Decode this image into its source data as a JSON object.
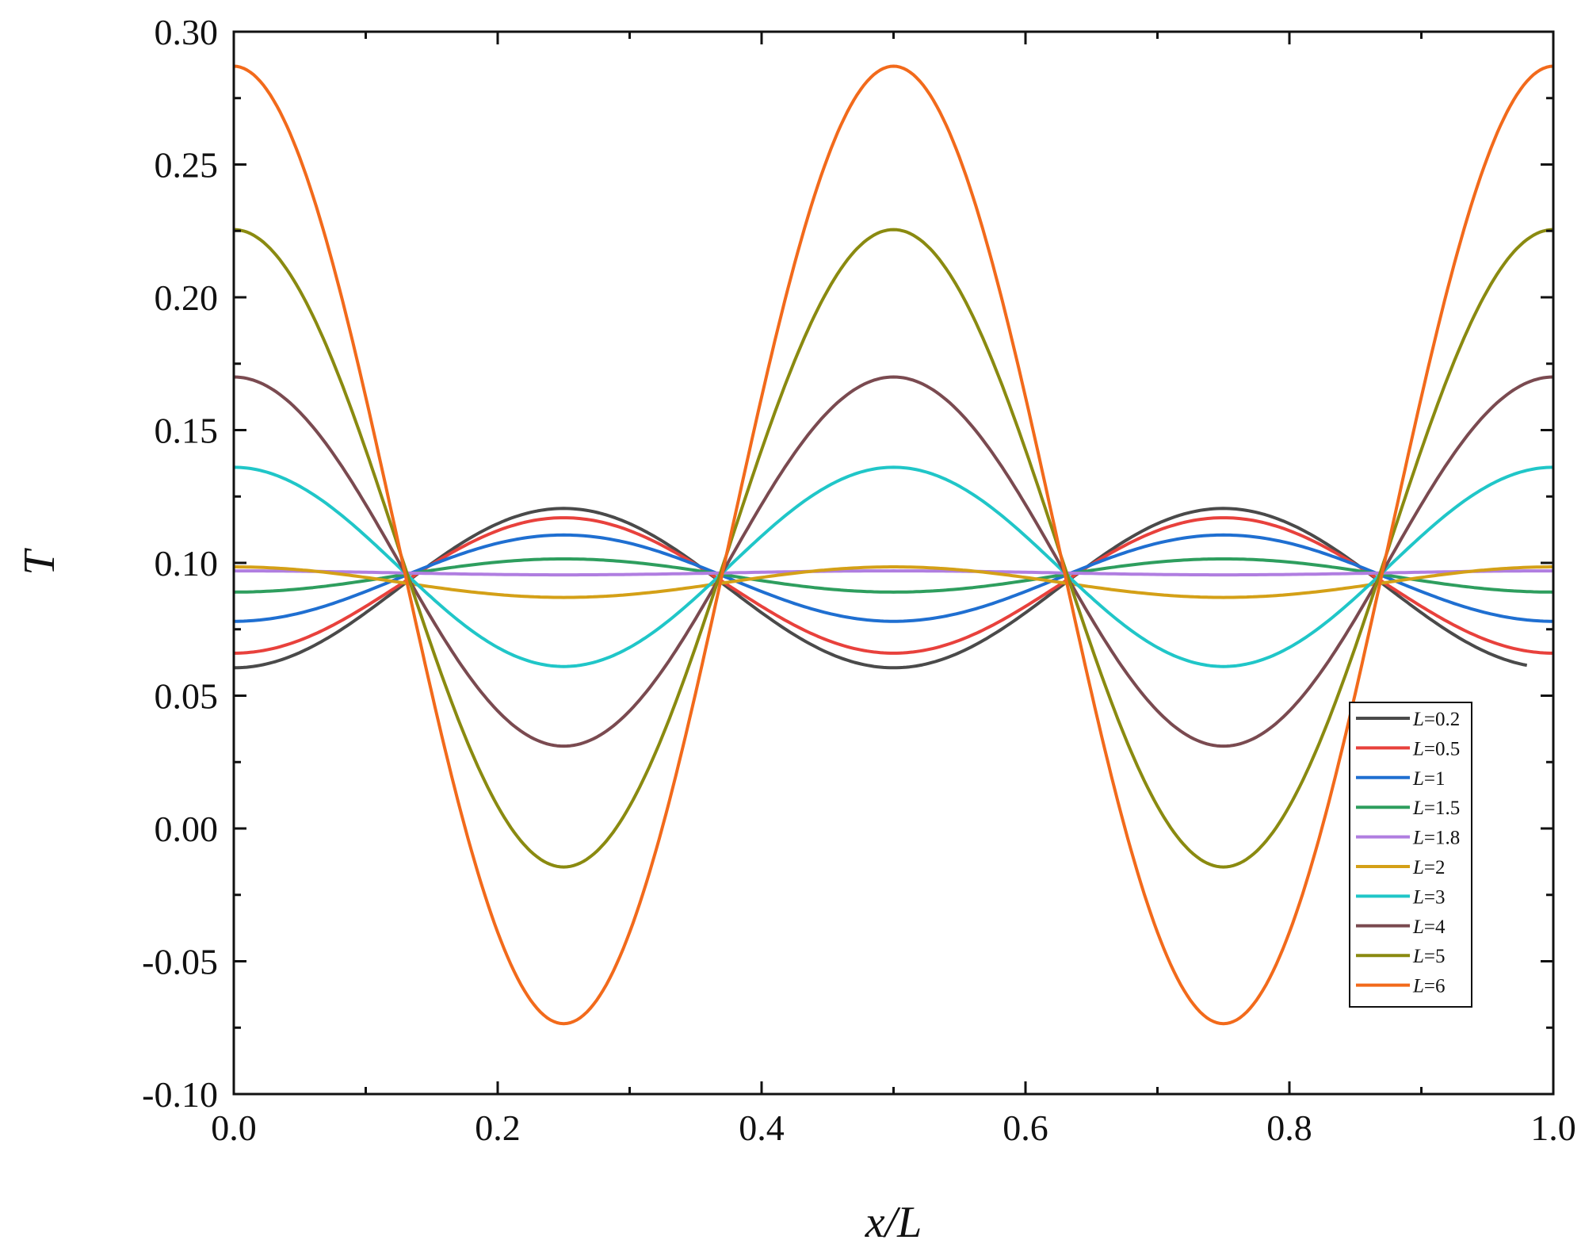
{
  "chart_data": {
    "type": "line",
    "xlabel": "x/L",
    "ylabel": "T",
    "xlim": [
      0.0,
      1.0
    ],
    "ylim": [
      -0.1,
      0.3
    ],
    "xticks": [
      "0.0",
      "0.2",
      "0.4",
      "0.6",
      "0.8",
      "1.0"
    ],
    "yticks": [
      "-0.10",
      "-0.05",
      "0.00",
      "0.05",
      "0.10",
      "0.15",
      "0.20",
      "0.25",
      "0.30"
    ],
    "grid": false,
    "legend_position": "lower-right",
    "series": [
      {
        "name": "L=0.2",
        "label_var": "L",
        "label_val": "=0.2",
        "color": "#4a4a4a",
        "edge": 0.0605,
        "center": 0.1205,
        "x_end": 0.98
      },
      {
        "name": "L=0.5",
        "label_var": "L",
        "label_val": "=0.5",
        "color": "#e8413c",
        "edge": 0.066,
        "center": 0.117,
        "x_end": 1.0
      },
      {
        "name": "L=1",
        "label_var": "L",
        "label_val": "=1",
        "color": "#1f6fd1",
        "edge": 0.078,
        "center": 0.1105,
        "x_end": 1.0
      },
      {
        "name": "L=1.5",
        "label_var": "L",
        "label_val": "=1.5",
        "color": "#2e9e5e",
        "edge": 0.089,
        "center": 0.1015,
        "x_end": 1.0
      },
      {
        "name": "L=1.8",
        "label_var": "L",
        "label_val": "=1.8",
        "color": "#b07ee0",
        "edge": 0.097,
        "center": 0.0955,
        "x_end": 1.0
      },
      {
        "name": "L=2",
        "label_var": "L",
        "label_val": "=2",
        "color": "#d4a017",
        "edge": 0.0985,
        "center": 0.087,
        "x_end": 1.0
      },
      {
        "name": "L=3",
        "label_var": "L",
        "label_val": "=3",
        "color": "#20c6c8",
        "edge": 0.136,
        "center": 0.061,
        "x_end": 1.0
      },
      {
        "name": "L=4",
        "label_var": "L",
        "label_val": "=4",
        "color": "#7a4a50",
        "edge": 0.17,
        "center": 0.031,
        "x_end": 1.0
      },
      {
        "name": "L=5",
        "label_var": "L",
        "label_val": "=5",
        "color": "#8a8a10",
        "edge": 0.2255,
        "center": -0.0145,
        "x_end": 1.0
      },
      {
        "name": "L=6",
        "label_var": "L",
        "label_val": "=6",
        "color": "#f26a1b",
        "edge": 0.287,
        "center": -0.0735,
        "x_end": 1.0
      }
    ]
  }
}
